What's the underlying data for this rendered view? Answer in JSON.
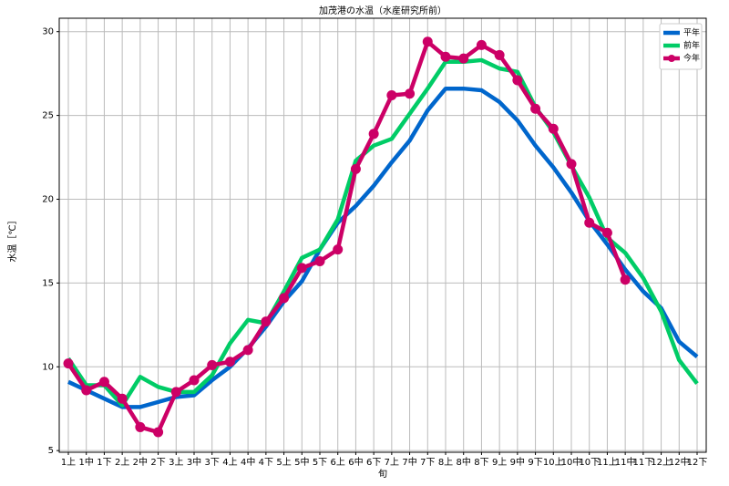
{
  "chart_data": {
    "type": "line",
    "title": "加茂港の水温（水産研究所前）",
    "ylabel": "水温［℃］",
    "xlabel": "旬",
    "categories": [
      "1上",
      "1中",
      "1下",
      "2上",
      "2中",
      "2下",
      "3上",
      "3中",
      "3下",
      "4上",
      "4中",
      "4下",
      "5上",
      "5中",
      "5下",
      "6上",
      "6中",
      "6下",
      "7上",
      "7中",
      "7下",
      "8上",
      "8中",
      "8下",
      "9上",
      "9中",
      "9下",
      "10上",
      "10中",
      "10下",
      "11上",
      "11中",
      "11下",
      "12上",
      "12中",
      "12下"
    ],
    "series": [
      {
        "name": "平年",
        "color": "#0066cc",
        "marker": false,
        "values": [
          9.1,
          8.6,
          8.1,
          7.6,
          7.6,
          7.9,
          8.2,
          8.3,
          9.2,
          10.0,
          11.1,
          12.4,
          13.9,
          15.1,
          17.0,
          18.6,
          19.6,
          20.8,
          22.2,
          23.5,
          25.3,
          26.6,
          26.6,
          26.5,
          25.8,
          24.7,
          23.2,
          21.9,
          20.4,
          18.7,
          17.3,
          15.8,
          14.5,
          13.5,
          11.5,
          10.6
        ]
      },
      {
        "name": "前年",
        "color": "#00cc66",
        "marker": false,
        "values": [
          10.5,
          8.9,
          8.9,
          7.7,
          9.4,
          8.8,
          8.5,
          8.5,
          9.5,
          11.4,
          12.8,
          12.6,
          14.5,
          16.5,
          17.0,
          18.8,
          22.3,
          23.2,
          23.6,
          25.1,
          26.6,
          28.2,
          28.2,
          28.3,
          27.8,
          27.6,
          25.5,
          24.0,
          22.0,
          20.1,
          17.7,
          16.8,
          15.3,
          13.3,
          10.4,
          9.0
        ]
      },
      {
        "name": "今年",
        "color": "#cc0066",
        "marker": true,
        "values": [
          10.2,
          8.6,
          9.1,
          8.1,
          6.4,
          6.1,
          8.5,
          9.2,
          10.1,
          10.3,
          11.0,
          12.7,
          14.1,
          15.9,
          16.3,
          17.0,
          21.8,
          23.9,
          26.2,
          26.3,
          29.4,
          28.5,
          28.4,
          29.2,
          28.6,
          27.1,
          25.4,
          24.2,
          22.1,
          18.6,
          18.0,
          15.2,
          null,
          null,
          null,
          null
        ]
      }
    ],
    "ylim": [
      4.9,
      30.8
    ],
    "yticks": [
      5,
      10,
      15,
      20,
      25,
      30
    ],
    "grid": true,
    "legend": "upper right"
  }
}
